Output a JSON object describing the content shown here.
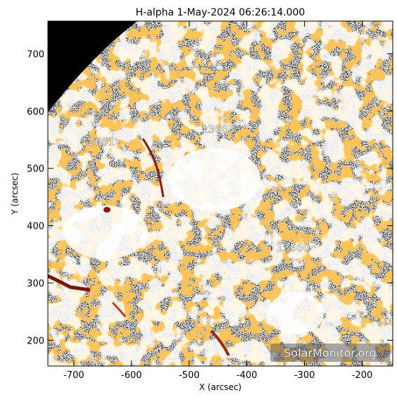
{
  "title": "H-alpha   1-May-2024 06:26:14.000",
  "x_axis": {
    "label": "X (arcsec)",
    "range": [
      -745,
      -147
    ],
    "ticks": [
      -700,
      -600,
      -500,
      -400,
      -300,
      -200
    ]
  },
  "y_axis": {
    "label": "Y (arcsec)",
    "range": [
      155,
      757
    ],
    "ticks": [
      200,
      300,
      400,
      500,
      600,
      700
    ]
  },
  "active_regions": [
    {
      "id": "13663",
      "x": -450,
      "y": 562
    },
    {
      "id": "13661",
      "x": -658,
      "y": 540
    },
    {
      "id": "13660",
      "x": -320,
      "y": 355
    }
  ],
  "watermark": "SolarMonitor.org",
  "colors": {
    "background": "#ffffff",
    "disk_off_limb": "#000000",
    "plage": "#ff8c1a",
    "filament": "#8b1a0a"
  }
}
